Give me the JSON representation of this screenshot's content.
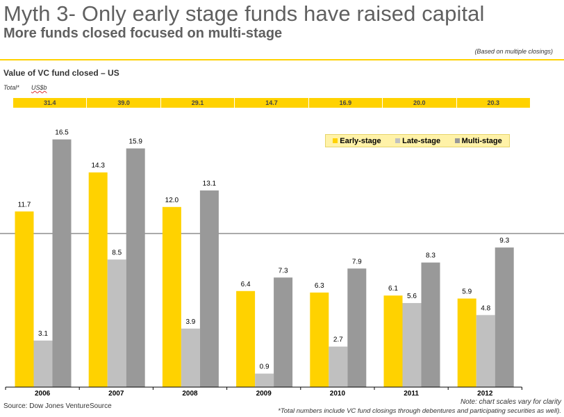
{
  "header": {
    "title": "Myth 3- Only early stage funds have raised capital",
    "subtitle": "More funds closed focused on multi-stage",
    "note": "(Based on multiple closings)"
  },
  "chart_heading": "Value of VC fund closed – US",
  "totals": {
    "label": "Total*",
    "unit": "US$b",
    "values": [
      "31.4",
      "39.0",
      "29.1",
      "14.7",
      "16.9",
      "20.0",
      "20.3"
    ]
  },
  "chart_data": {
    "type": "bar",
    "categories": [
      "2006",
      "2007",
      "2008",
      "2009",
      "2010",
      "2011",
      "2012"
    ],
    "series": [
      {
        "name": "Early-stage",
        "values": [
          11.7,
          14.3,
          12.0,
          6.4,
          6.3,
          6.1,
          5.9
        ],
        "color": "#FFD200"
      },
      {
        "name": "Late-stage",
        "values": [
          3.1,
          8.5,
          3.9,
          0.9,
          2.7,
          5.6,
          4.8
        ],
        "color": "#C0C0C0"
      },
      {
        "name": "Multi-stage",
        "values": [
          16.5,
          15.9,
          13.1,
          7.3,
          7.9,
          8.3,
          9.3
        ],
        "color": "#999999"
      }
    ],
    "legend_position": "top-right",
    "grid": false,
    "note": "chart scales vary for clarity"
  },
  "footer": {
    "source": "Source:  Dow Jones VentureSource",
    "note_scale": "Note:  chart scales vary for clarity",
    "footnote": "*Total numbers include VC fund closings through debentures and participating securities as well)."
  }
}
